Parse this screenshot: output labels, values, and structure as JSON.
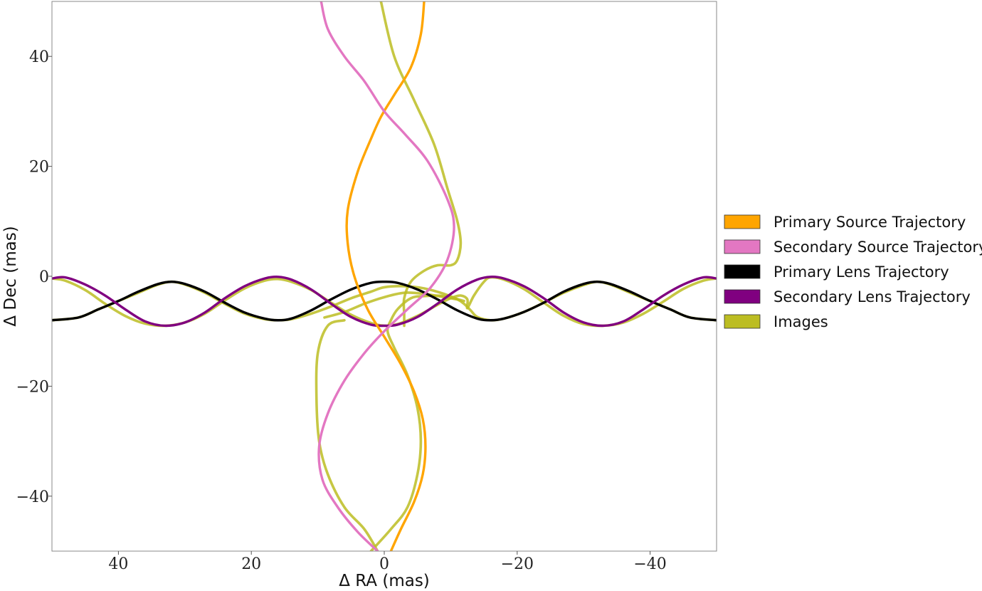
{
  "chart_data": {
    "type": "line",
    "title": "",
    "xlabel": "Δ RA (mas)",
    "ylabel": "Δ Dec (mas)",
    "xlim": [
      50,
      -50
    ],
    "ylim": [
      -50,
      50
    ],
    "x_inverted": true,
    "xticks": [
      40,
      20,
      0,
      -20,
      -40
    ],
    "xtick_labels": [
      "40",
      "20",
      "0",
      "−20",
      "−40"
    ],
    "yticks": [
      40,
      20,
      0,
      -20,
      -40
    ],
    "ytick_labels": [
      "40",
      "20",
      "0",
      "−20",
      "−40"
    ],
    "grid": false,
    "legend_position": "right, outside plot",
    "series": [
      {
        "key": "images",
        "name": "Images",
        "color": "#bcbd22",
        "draw_order": 0,
        "paths": [
          [
            [
              50,
              -8
            ],
            [
              46,
              -7.5
            ],
            [
              43,
              -6
            ],
            [
              40,
              -4.5
            ],
            [
              37,
              -3
            ],
            [
              34,
              -1.5
            ],
            [
              32,
              -1
            ],
            [
              30,
              -1.5
            ],
            [
              27,
              -3
            ],
            [
              24,
              -5
            ],
            [
              21,
              -6.8
            ],
            [
              18,
              -7.8
            ],
            [
              16,
              -8
            ],
            [
              14,
              -7.8
            ],
            [
              11,
              -6.8
            ],
            [
              8,
              -5.5
            ],
            [
              5,
              -4
            ],
            [
              2,
              -2.8
            ],
            [
              0,
              -2
            ],
            [
              -3,
              -1.8
            ],
            [
              -6,
              -2.2
            ],
            [
              -9,
              -3.2
            ],
            [
              -11,
              -4.2
            ],
            [
              -12,
              -5
            ],
            [
              -13,
              -6.2
            ],
            [
              -14,
              -7.4
            ],
            [
              -16,
              -8
            ],
            [
              -18,
              -7.7
            ],
            [
              -21,
              -6.5
            ],
            [
              -24,
              -4.8
            ],
            [
              -27,
              -3
            ],
            [
              -30,
              -1.6
            ],
            [
              -32,
              -1
            ],
            [
              -34,
              -1.5
            ],
            [
              -37,
              -3
            ],
            [
              -40,
              -4.5
            ],
            [
              -43,
              -6
            ],
            [
              -46,
              -7.5
            ],
            [
              -50,
              -8
            ]
          ],
          [
            [
              50,
              -0.4
            ],
            [
              48,
              -0.8
            ],
            [
              45,
              -2.5
            ],
            [
              42,
              -5
            ],
            [
              39,
              -7.2
            ],
            [
              36,
              -8.6
            ],
            [
              33,
              -9
            ],
            [
              30,
              -8.4
            ],
            [
              27,
              -6.8
            ],
            [
              24,
              -4.4
            ],
            [
              21,
              -2.2
            ],
            [
              18,
              -0.8
            ],
            [
              16,
              -0.5
            ],
            [
              14,
              -1
            ],
            [
              11,
              -2.5
            ],
            [
              8,
              -4.8
            ],
            [
              5,
              -7
            ],
            [
              2,
              -8.5
            ],
            [
              0,
              -9
            ],
            [
              -2,
              -8.7
            ],
            [
              -5,
              -7.2
            ],
            [
              -8,
              -5.2
            ],
            [
              -10,
              -4
            ],
            [
              -11.5,
              -3.5
            ],
            [
              -12.5,
              -4.2
            ],
            [
              -12.5,
              -5.8
            ],
            [
              -13.5,
              -3.5
            ],
            [
              -15,
              -1
            ],
            [
              -16,
              -0.2
            ],
            [
              -18,
              -0.6
            ],
            [
              -21,
              -2.3
            ],
            [
              -24,
              -4.8
            ],
            [
              -27,
              -7.2
            ],
            [
              -30,
              -8.7
            ],
            [
              -33,
              -9
            ],
            [
              -36,
              -8.4
            ],
            [
              -39,
              -6.8
            ],
            [
              -42,
              -4.6
            ],
            [
              -45,
              -2.3
            ],
            [
              -48,
              -0.8
            ],
            [
              -50,
              -0.4
            ]
          ],
          [
            [
              9,
              -7.5
            ],
            [
              6,
              -6.5
            ],
            [
              3,
              -5
            ],
            [
              0,
              -3.8
            ],
            [
              -3,
              -3
            ],
            [
              -6,
              -3.2
            ],
            [
              -9,
              -3.8
            ],
            [
              -11,
              -4.2
            ]
          ],
          [
            [
              -3,
              -9
            ],
            [
              -3,
              -7
            ],
            [
              -3,
              -4
            ],
            [
              -4,
              -1
            ],
            [
              -6,
              1
            ],
            [
              -8,
              2
            ],
            [
              -10,
              2
            ],
            [
              -11,
              3
            ],
            [
              -11.5,
              6
            ],
            [
              -11,
              10
            ],
            [
              -9.5,
              16
            ],
            [
              -7.5,
              24
            ],
            [
              -4.5,
              32
            ],
            [
              -1.5,
              40
            ],
            [
              0.5,
              50
            ]
          ],
          [
            [
              6,
              -8
            ],
            [
              8.5,
              -9
            ],
            [
              10,
              -14
            ],
            [
              10.2,
              -22
            ],
            [
              9.8,
              -30
            ],
            [
              8.5,
              -36
            ],
            [
              6,
              -42
            ],
            [
              3,
              -46
            ],
            [
              1,
              -50
            ]
          ],
          [
            [
              2,
              -50
            ],
            [
              -1,
              -46
            ],
            [
              -3.5,
              -42
            ],
            [
              -5,
              -36
            ],
            [
              -5.5,
              -30
            ],
            [
              -5,
              -24
            ],
            [
              -3.5,
              -18
            ],
            [
              -1.5,
              -13
            ],
            [
              -0.5,
              -10
            ],
            [
              -1,
              -8
            ],
            [
              -2,
              -6
            ],
            [
              -4,
              -4
            ],
            [
              -6,
              -3.6
            ],
            [
              -9,
              -3.6
            ],
            [
              -12,
              -4.5
            ]
          ]
        ]
      },
      {
        "key": "primary_lens",
        "name": "Primary Lens Trajectory",
        "color": "#000000",
        "draw_order": 1,
        "paths": [
          [
            [
              50,
              -8
            ],
            [
              46,
              -7.5
            ],
            [
              43,
              -6
            ],
            [
              40,
              -4.5
            ],
            [
              37,
              -2.8
            ],
            [
              34,
              -1.4
            ],
            [
              32,
              -1
            ],
            [
              30,
              -1.4
            ],
            [
              27,
              -2.8
            ],
            [
              24,
              -4.8
            ],
            [
              21,
              -6.6
            ],
            [
              18,
              -7.7
            ],
            [
              16,
              -8
            ],
            [
              14,
              -7.7
            ],
            [
              11,
              -6.2
            ],
            [
              8,
              -4.2
            ],
            [
              5,
              -2.4
            ],
            [
              2,
              -1.2
            ],
            [
              0,
              -1
            ],
            [
              -2,
              -1.2
            ],
            [
              -5,
              -2.4
            ],
            [
              -8,
              -4.2
            ],
            [
              -11,
              -6.2
            ],
            [
              -14,
              -7.7
            ],
            [
              -16,
              -8
            ],
            [
              -18,
              -7.7
            ],
            [
              -21,
              -6.5
            ],
            [
              -24,
              -4.8
            ],
            [
              -27,
              -2.8
            ],
            [
              -30,
              -1.4
            ],
            [
              -32,
              -1
            ],
            [
              -34,
              -1.4
            ],
            [
              -37,
              -2.8
            ],
            [
              -40,
              -4.5
            ],
            [
              -43,
              -6
            ],
            [
              -46,
              -7.5
            ],
            [
              -50,
              -8
            ]
          ]
        ]
      },
      {
        "key": "secondary_lens",
        "name": "Secondary Lens Trajectory",
        "color": "#800080",
        "draw_order": 2,
        "paths": [
          [
            [
              50,
              -0.4
            ],
            [
              48,
              -0.2
            ],
            [
              45,
              -1.5
            ],
            [
              42,
              -3.5
            ],
            [
              39,
              -6
            ],
            [
              36,
              -8.2
            ],
            [
              33,
              -9
            ],
            [
              30,
              -8.4
            ],
            [
              27,
              -6.6
            ],
            [
              24,
              -4
            ],
            [
              21,
              -1.8
            ],
            [
              18,
              -0.4
            ],
            [
              16,
              -0.1
            ],
            [
              14,
              -0.6
            ],
            [
              11,
              -2.4
            ],
            [
              8,
              -5
            ],
            [
              5,
              -7.4
            ],
            [
              2,
              -8.8
            ],
            [
              0,
              -9
            ],
            [
              -2,
              -8.8
            ],
            [
              -5,
              -7.4
            ],
            [
              -8,
              -5
            ],
            [
              -11,
              -2.4
            ],
            [
              -14,
              -0.6
            ],
            [
              -16,
              -0.1
            ],
            [
              -18,
              -0.4
            ],
            [
              -21,
              -1.8
            ],
            [
              -24,
              -4
            ],
            [
              -27,
              -6.6
            ],
            [
              -30,
              -8.4
            ],
            [
              -33,
              -9
            ],
            [
              -36,
              -8.2
            ],
            [
              -39,
              -6
            ],
            [
              -42,
              -3.5
            ],
            [
              -45,
              -1.5
            ],
            [
              -48,
              -0.2
            ],
            [
              -50,
              -0.4
            ]
          ]
        ]
      },
      {
        "key": "primary_source",
        "name": "Primary Source Trajectory",
        "color": "#ffa500",
        "draw_order": 3,
        "paths": [
          [
            [
              -6,
              50
            ],
            [
              -5.5,
              44
            ],
            [
              -4,
              38
            ],
            [
              -1.5,
              33
            ],
            [
              0.5,
              29
            ],
            [
              2,
              25
            ],
            [
              4,
              19
            ],
            [
              5.5,
              12
            ],
            [
              5.5,
              6
            ],
            [
              4.5,
              0
            ],
            [
              2.5,
              -6
            ],
            [
              0,
              -11
            ],
            [
              -2.5,
              -16
            ],
            [
              -4.5,
              -21
            ],
            [
              -5.8,
              -26
            ],
            [
              -6.2,
              -31
            ],
            [
              -5.8,
              -36
            ],
            [
              -4.5,
              -41
            ],
            [
              -2.5,
              -46
            ],
            [
              -1,
              -50
            ]
          ]
        ]
      },
      {
        "key": "secondary_source",
        "name": "Secondary Source Trajectory",
        "color": "#e377c2",
        "draw_order": 4,
        "paths": [
          [
            [
              9.5,
              50
            ],
            [
              8.5,
              45
            ],
            [
              6,
              40
            ],
            [
              3,
              35.5
            ],
            [
              0,
              30
            ],
            [
              -3,
              26
            ],
            [
              -6.5,
              21
            ],
            [
              -9.5,
              14
            ],
            [
              -10.5,
              9
            ],
            [
              -9.5,
              3
            ],
            [
              -7,
              -2
            ],
            [
              -3.5,
              -6
            ],
            [
              0,
              -10
            ],
            [
              3,
              -14
            ],
            [
              6,
              -19
            ],
            [
              8.5,
              -25
            ],
            [
              9.8,
              -31
            ],
            [
              9.3,
              -37
            ],
            [
              7,
              -42
            ],
            [
              4,
              -46.5
            ],
            [
              1,
              -50
            ]
          ]
        ]
      }
    ],
    "legend": [
      {
        "label": "Primary Source Trajectory",
        "color": "#ffa500"
      },
      {
        "label": "Secondary Source Trajectory",
        "color": "#e377c2"
      },
      {
        "label": "Primary Lens Trajectory",
        "color": "#000000"
      },
      {
        "label": "Secondary Lens Trajectory",
        "color": "#800080"
      },
      {
        "label": "Images",
        "color": "#bcbd22"
      }
    ]
  }
}
